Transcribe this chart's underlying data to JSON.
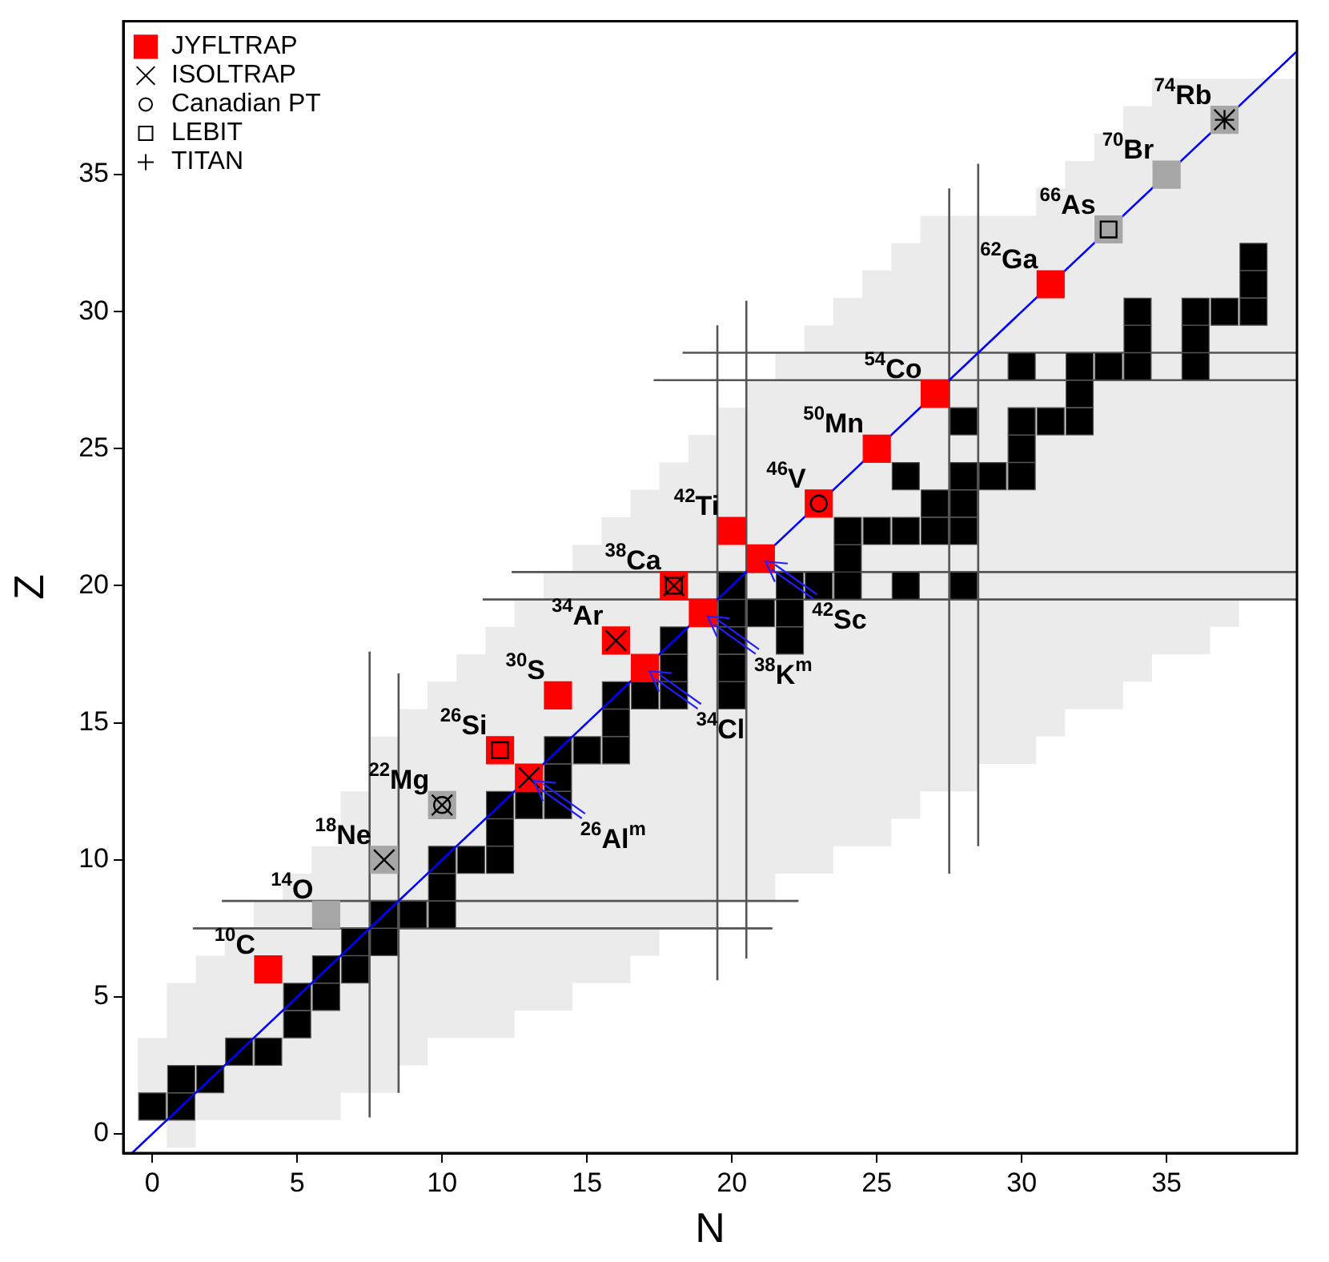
{
  "chart_data": {
    "type": "scatter",
    "xlabel": "N",
    "ylabel": "Z",
    "xlim": [
      -1,
      39.5
    ],
    "ylim": [
      -0.7,
      40.6
    ],
    "xticks": [
      0,
      5,
      10,
      15,
      20,
      25,
      30,
      35
    ],
    "yticks": [
      0,
      5,
      10,
      15,
      20,
      25,
      30,
      35
    ],
    "grid": false,
    "legend": "top left",
    "series": [
      {
        "type": "area",
        "color": "#ebebeb",
        "x": [
          -0.5,
          0.5,
          0.5,
          1.5,
          1.5,
          2.5,
          2.5,
          3.5,
          3.5,
          4.5,
          4.5,
          5.5,
          5.5,
          6.5,
          6.5,
          7.5,
          7.5,
          8.5,
          8.5,
          9.5,
          9.5,
          10.5,
          10.5,
          11.5,
          11.5,
          12.5,
          12.5,
          13.5,
          13.5,
          14.5,
          14.5,
          15.5,
          15.5,
          16.5,
          16.5,
          17.5,
          17.5,
          18.5,
          18.5,
          19.5,
          19.5,
          20.5,
          20.5,
          21.5,
          21.5,
          22.5,
          22.5,
          23.5,
          23.5,
          24.5,
          24.5,
          25.5,
          25.5,
          26.5,
          26.5,
          27.5,
          27.5,
          28.5,
          28.5,
          29.5,
          29.5,
          30.5,
          30.5,
          31.5,
          31.5,
          32.5,
          32.5,
          33.5,
          33.5,
          34.5,
          34.5,
          35.5,
          35.5,
          36.5,
          36.5,
          37.5,
          37.5,
          38.5,
          38.5,
          39.5,
          39.5,
          38.5,
          38.5,
          37.5,
          37.5,
          36.5,
          36.5,
          35.5,
          35.5,
          34.5,
          34.5,
          33.5,
          33.5,
          32.5,
          32.5,
          31.5,
          31.5,
          30.5,
          30.5,
          29.5,
          29.5,
          28.5,
          28.5,
          27.5,
          27.5,
          26.5,
          26.5,
          25.5,
          25.5,
          24.5,
          24.5,
          23.5,
          23.5,
          22.5,
          22.5,
          21.5,
          21.5,
          20.5,
          20.5,
          19.5,
          19.5,
          18.5,
          18.5,
          17.5,
          17.5,
          16.5,
          16.5,
          15.5,
          15.5,
          14.5,
          14.5,
          13.5,
          13.5,
          12.5,
          12.5,
          11.5,
          11.5,
          10.5,
          10.5,
          9.5,
          9.5,
          8.5,
          8.5,
          7.5,
          7.5,
          6.5,
          6.5,
          5.5,
          5.5,
          4.5,
          4.5,
          3.5,
          3.5,
          2.5,
          2.5,
          1.5,
          1.5,
          0.5,
          0.5,
          -0.5
        ],
        "values": [
          3.5,
          3.5,
          5.5,
          5.5,
          6.5,
          6.5,
          7.5,
          7.5,
          8.5,
          8.5,
          9.5,
          9.5,
          10.5,
          10.5,
          12.5,
          12.5,
          14.5,
          14.5,
          15.5,
          15.5,
          16.5,
          16.5,
          17.5,
          17.5,
          18.5,
          18.5,
          19.5,
          19.5,
          20.5,
          20.5,
          21.5,
          21.5,
          22.5,
          22.5,
          23.5,
          23.5,
          24.5,
          24.5,
          25.5,
          25.5,
          26.5,
          26.5,
          27.5,
          27.5,
          28.5,
          28.5,
          29.5,
          29.5,
          30.5,
          30.5,
          31.5,
          31.5,
          32.5,
          32.5,
          33.5,
          33.5,
          33.5,
          33.5,
          33.5,
          33.5,
          33.5,
          33.5,
          34.5,
          34.5,
          35.5,
          35.5,
          36.5,
          36.5,
          37.5,
          37.5,
          38.5,
          38.5,
          38.5,
          38.5,
          38.5,
          38.5,
          38.5,
          38.5,
          38.5,
          38.5,
          19.5,
          19.5,
          19.5,
          19.5,
          18.5,
          18.5,
          17.5,
          17.5,
          17.5,
          17.5,
          16.5,
          16.5,
          15.5,
          15.5,
          15.5,
          15.5,
          14.5,
          14.5,
          13.5,
          13.5,
          13.5,
          13.5,
          12.5,
          12.5,
          12.5,
          12.5,
          11.5,
          11.5,
          10.5,
          10.5,
          10.5,
          10.5,
          9.5,
          9.5,
          9.5,
          9.5,
          8.5,
          8.5,
          8.5,
          8.5,
          7.5,
          7.5,
          7.5,
          7.5,
          6.5,
          6.5,
          5.5,
          5.5,
          5.5,
          5.5,
          4.5,
          4.5,
          4.5,
          4.5,
          3.5,
          3.5,
          3.5,
          3.5,
          3.5,
          3.5,
          2.5,
          2.5,
          1.5,
          1.5,
          1.5,
          1.5,
          0.5,
          0.5,
          0.5,
          0.5,
          0.5,
          0.5,
          0.5,
          0.5,
          0.5,
          0.5,
          -0.5,
          -0.5,
          0.5,
          0.5
        ]
      },
      {
        "type": "line",
        "color": "#555555",
        "x": [
          7.5,
          7.5
        ],
        "values": [
          0.6,
          17.6
        ]
      },
      {
        "type": "line",
        "color": "#555555",
        "x": [
          8.5,
          8.5
        ],
        "values": [
          1.5,
          16.8
        ]
      },
      {
        "type": "line",
        "color": "#555555",
        "x": [
          1.4,
          21.4
        ],
        "values": [
          7.5,
          7.5
        ]
      },
      {
        "type": "line",
        "color": "#555555",
        "x": [
          2.4,
          22.3
        ],
        "values": [
          8.5,
          8.5
        ]
      },
      {
        "type": "line",
        "color": "#555555",
        "x": [
          19.5,
          19.5
        ],
        "values": [
          5.6,
          29.5
        ]
      },
      {
        "type": "line",
        "color": "#555555",
        "x": [
          20.5,
          20.5
        ],
        "values": [
          6.4,
          30.4
        ]
      },
      {
        "type": "line",
        "color": "#555555",
        "x": [
          11.4,
          39.5
        ],
        "values": [
          19.5,
          19.5
        ]
      },
      {
        "type": "line",
        "color": "#555555",
        "x": [
          12.4,
          39.5
        ],
        "values": [
          20.5,
          20.5
        ]
      },
      {
        "type": "line",
        "color": "#555555",
        "x": [
          27.5,
          27.5
        ],
        "values": [
          9.5,
          34.5
        ]
      },
      {
        "type": "line",
        "color": "#555555",
        "x": [
          28.5,
          28.5
        ],
        "values": [
          10.5,
          35.4
        ]
      },
      {
        "type": "line",
        "color": "#555555",
        "x": [
          17.3,
          39.5
        ],
        "values": [
          27.5,
          27.5
        ]
      },
      {
        "type": "line",
        "color": "#555555",
        "x": [
          18.3,
          39.5
        ],
        "values": [
          28.5,
          28.5
        ]
      },
      {
        "type": "scatter",
        "marker": "square",
        "color": "#000000",
        "x": [
          0,
          1,
          1,
          2,
          3,
          4,
          5,
          5,
          6,
          6,
          7,
          7,
          8,
          8,
          9,
          10,
          10,
          10,
          11,
          12,
          12,
          12,
          13,
          14,
          14,
          14,
          15,
          16,
          16,
          16,
          17,
          18,
          20,
          18,
          20,
          18,
          20,
          22,
          20,
          21,
          22,
          20,
          22,
          23,
          24,
          26,
          28,
          24,
          24,
          25,
          26,
          27,
          28,
          27,
          28,
          26,
          28,
          29,
          30,
          30,
          28,
          30,
          31,
          32,
          32,
          30,
          32,
          33,
          34,
          36,
          34,
          36,
          34,
          36,
          37,
          38,
          38,
          38
        ],
        "values": [
          1,
          1,
          2,
          2,
          3,
          3,
          4,
          5,
          5,
          6,
          6,
          7,
          7,
          8,
          8,
          8,
          9,
          10,
          10,
          10,
          11,
          12,
          12,
          12,
          13,
          14,
          14,
          14,
          15,
          16,
          16,
          16,
          16,
          17,
          17,
          18,
          18,
          18,
          19,
          19,
          19,
          20,
          20,
          20,
          20,
          20,
          20,
          21,
          22,
          22,
          22,
          22,
          22,
          23,
          23,
          24,
          24,
          24,
          24,
          25,
          26,
          26,
          26,
          26,
          27,
          28,
          28,
          28,
          28,
          28,
          29,
          29,
          30,
          30,
          30,
          30,
          31,
          32
        ]
      },
      {
        "type": "line",
        "color": "#0000ff",
        "x": [
          -0.7,
          39.5
        ],
        "values": [
          -0.7,
          39.5
        ]
      },
      {
        "name": "JYFLTRAP",
        "marker": "square",
        "color": "#ff0000",
        "x": [
          4,
          12,
          13,
          14,
          17,
          16,
          19,
          18,
          21,
          20,
          23,
          25,
          27,
          31
        ],
        "values": [
          6,
          14,
          13,
          16,
          17,
          18,
          19,
          20,
          21,
          22,
          23,
          25,
          27,
          31
        ]
      },
      {
        "marker": "square",
        "color": "#a6a6a6",
        "x": [
          6,
          8,
          10,
          33,
          35,
          37
        ],
        "values": [
          8,
          10,
          12,
          33,
          35,
          37
        ]
      },
      {
        "name": "ISOLTRAP",
        "marker": "cross",
        "color": "#000000",
        "x": [
          8,
          10,
          13,
          16,
          18,
          37
        ],
        "values": [
          10,
          12,
          13,
          18,
          20,
          37
        ]
      },
      {
        "name": "Canadian PT",
        "color": "#000000",
        "x": [
          10,
          23
        ],
        "values": [
          12,
          23
        ]
      },
      {
        "name": "LEBIT",
        "marker": "square",
        "color": "#000000",
        "x": [
          12,
          18,
          33
        ],
        "values": [
          14,
          20,
          33
        ]
      },
      {
        "name": "TITAN",
        "marker": "plus",
        "color": "#000000",
        "x": [
          37
        ],
        "values": [
          37
        ]
      }
    ],
    "annotations": [
      {
        "text": "$^{10}$C",
        "x": 4,
        "y": 6
      },
      {
        "text": "$^{14}$O",
        "x": 6,
        "y": 8
      },
      {
        "text": "$^{18}$Ne",
        "x": 8,
        "y": 10
      },
      {
        "text": "$^{22}$Mg",
        "x": 10,
        "y": 12
      },
      {
        "text": "$^{26}$Si",
        "x": 12,
        "y": 14
      },
      {
        "text": "$^{26}$Al$^{m}$",
        "x": 13,
        "y": 13
      },
      {
        "text": "$^{30}$S",
        "x": 14,
        "y": 16
      },
      {
        "text": "$^{34}$Ar",
        "x": 16,
        "y": 18
      },
      {
        "text": "$^{34}$Cl",
        "x": 17,
        "y": 17
      },
      {
        "text": "$^{38}$Ca",
        "x": 18,
        "y": 20
      },
      {
        "text": "$^{38}$K$^{m}$",
        "x": 19,
        "y": 19
      },
      {
        "text": "$^{42}$Ti",
        "x": 20,
        "y": 22
      },
      {
        "text": "$^{42}$Sc",
        "x": 21,
        "y": 21
      },
      {
        "text": "$^{46}$V",
        "x": 23,
        "y": 23
      },
      {
        "text": "$^{50}$Mn",
        "x": 25,
        "y": 25
      },
      {
        "text": "$^{54}$Co",
        "x": 27,
        "y": 27
      },
      {
        "text": "$^{62}$Ga",
        "x": 31,
        "y": 31
      },
      {
        "text": "$^{66}$As",
        "x": 33,
        "y": 33
      },
      {
        "text": "$^{70}$Br",
        "x": 35,
        "y": 35
      },
      {
        "text": "$^{74}$Rb",
        "x": 37,
        "y": 37
      }
    ]
  }
}
